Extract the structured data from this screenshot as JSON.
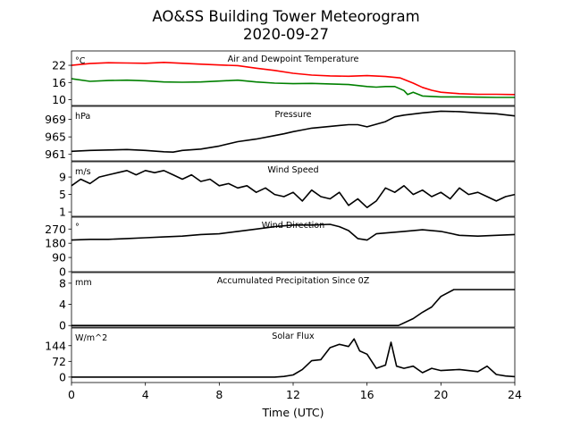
{
  "figure": {
    "title_line1": "AO&SS Building Tower Meteorogram",
    "title_line2": "2020-09-27",
    "xlabel": "Time (UTC)",
    "x_ticks": [
      "0",
      "4",
      "8",
      "12",
      "16",
      "20",
      "24"
    ]
  },
  "colors": {
    "temperature": "#ff0000",
    "dewpoint": "#008000",
    "line": "#000000"
  },
  "chart_data": [
    {
      "type": "line",
      "title": "Air and Dewpoint Temperature",
      "unit": "°C",
      "xlim": [
        0,
        24
      ],
      "ylim": [
        8,
        27
      ],
      "yticks": [
        10,
        16,
        22
      ],
      "grid": false,
      "series": [
        {
          "key": "temperature",
          "color": "#ff0000",
          "x": [
            0,
            1,
            2,
            3,
            4,
            5,
            6,
            7,
            8,
            9,
            10,
            11,
            12,
            13,
            14,
            15,
            16,
            17,
            17.8,
            18.5,
            19,
            19.5,
            20,
            21,
            22,
            23,
            24
          ],
          "values": [
            22,
            22.6,
            22.9,
            22.8,
            22.7,
            23,
            22.7,
            22.4,
            22.1,
            21.9,
            21,
            20.2,
            19.2,
            18.6,
            18.3,
            18.2,
            18.4,
            18.1,
            17.6,
            15.8,
            14.3,
            13.3,
            12.6,
            12.1,
            11.9,
            11.9,
            11.8
          ]
        },
        {
          "key": "dewpoint",
          "color": "#008000",
          "x": [
            0,
            1,
            2,
            3,
            4,
            5,
            6,
            7,
            8,
            9,
            10,
            11,
            12,
            13,
            14,
            15,
            16,
            16.5,
            17,
            17.5,
            18,
            18.2,
            18.5,
            19,
            20,
            21,
            22,
            23,
            24
          ],
          "values": [
            17.3,
            16.4,
            16.7,
            16.8,
            16.6,
            16.2,
            16.1,
            16.2,
            16.5,
            16.8,
            16.2,
            15.8,
            15.6,
            15.7,
            15.5,
            15.3,
            14.6,
            14.4,
            14.6,
            14.6,
            13.2,
            11.8,
            12.6,
            11.3,
            11,
            11,
            10.9,
            10.8,
            10.8
          ]
        }
      ]
    },
    {
      "type": "line",
      "title": "Pressure",
      "unit": "hPa",
      "xlim": [
        0,
        24
      ],
      "ylim": [
        959.5,
        972
      ],
      "yticks": [
        961,
        965,
        969
      ],
      "grid": false,
      "series": [
        {
          "key": "pressure",
          "color": "#000000",
          "x": [
            0,
            1,
            2,
            3,
            4,
            5,
            5.5,
            6,
            7,
            8,
            9,
            10,
            11,
            11.5,
            12,
            12.5,
            13,
            14,
            15,
            15.5,
            16,
            17,
            17.5,
            18,
            19,
            20,
            21,
            22,
            23,
            24
          ],
          "values": [
            961.7,
            961.9,
            962,
            962.1,
            961.9,
            961.6,
            961.5,
            961.9,
            962.2,
            962.9,
            963.9,
            964.5,
            965.3,
            965.7,
            966.2,
            966.6,
            967,
            967.4,
            967.8,
            967.8,
            967.3,
            968.5,
            969.6,
            970,
            970.5,
            970.9,
            970.8,
            970.5,
            970.3,
            969.8
          ]
        }
      ]
    },
    {
      "type": "line",
      "title": "Wind Speed",
      "unit": "m/s",
      "xlim": [
        0,
        24
      ],
      "ylim": [
        0,
        12.5
      ],
      "yticks": [
        1,
        5,
        9
      ],
      "grid": false,
      "series": [
        {
          "key": "wind_speed",
          "color": "#000000",
          "x": [
            0,
            0.5,
            1,
            1.5,
            2,
            2.5,
            3,
            3.5,
            4,
            4.5,
            5,
            5.5,
            6,
            6.5,
            7,
            7.5,
            8,
            8.5,
            9,
            9.5,
            10,
            10.5,
            11,
            11.5,
            12,
            12.5,
            13,
            13.5,
            14,
            14.5,
            15,
            15.5,
            16,
            16.5,
            17,
            17.5,
            18,
            18.5,
            19,
            19.5,
            20,
            20.5,
            21,
            21.5,
            22,
            22.5,
            23,
            23.5,
            24
          ],
          "values": [
            7,
            8.5,
            7.5,
            9,
            9.5,
            10,
            10.5,
            9.5,
            10.5,
            10,
            10.5,
            9.5,
            8.5,
            9.5,
            8,
            8.5,
            7,
            7.5,
            6.5,
            7,
            5.5,
            6.5,
            5,
            4.5,
            5.5,
            3.5,
            6,
            4.5,
            4,
            5.5,
            2.5,
            4,
            2,
            3.5,
            6.5,
            5.5,
            7,
            5,
            6,
            4.5,
            5.5,
            4,
            6.5,
            5,
            5.5,
            4.5,
            3.5,
            4.5,
            5
          ]
        }
      ]
    },
    {
      "type": "line",
      "title": "Wind Direction",
      "unit": "°",
      "xlim": [
        0,
        24
      ],
      "ylim": [
        0,
        345
      ],
      "yticks": [
        0,
        90,
        180,
        270
      ],
      "grid": false,
      "series": [
        {
          "key": "wind_direction",
          "color": "#000000",
          "x": [
            0,
            1,
            2,
            3,
            4,
            5,
            6,
            7,
            8,
            9,
            10,
            11,
            12,
            13,
            14,
            14.5,
            15,
            15.5,
            16,
            16.5,
            17,
            18,
            19,
            20,
            21,
            22,
            23,
            24
          ],
          "values": [
            200,
            205,
            205,
            210,
            215,
            220,
            225,
            235,
            240,
            255,
            270,
            285,
            295,
            295,
            300,
            285,
            260,
            210,
            200,
            240,
            245,
            255,
            265,
            255,
            230,
            225,
            230,
            235
          ]
        }
      ]
    },
    {
      "type": "line",
      "title": "Accumulated Precipitation Since 0Z",
      "unit": "mm",
      "xlim": [
        0,
        24
      ],
      "ylim": [
        -0.3,
        10
      ],
      "yticks": [
        0,
        4,
        8
      ],
      "grid": false,
      "series": [
        {
          "key": "precipitation",
          "color": "#000000",
          "x": [
            0,
            17.7,
            18.5,
            19,
            19.5,
            20,
            20.7,
            21,
            24
          ],
          "values": [
            0,
            0,
            1.3,
            2.5,
            3.5,
            5.5,
            6.8,
            6.8,
            6.8
          ]
        }
      ]
    },
    {
      "type": "line",
      "title": "Solar Flux",
      "unit": "W/m^2",
      "xlim": [
        0,
        24
      ],
      "ylim": [
        -25,
        225
      ],
      "yticks": [
        0,
        72,
        144
      ],
      "grid": false,
      "series": [
        {
          "key": "solar_flux",
          "color": "#000000",
          "x": [
            0,
            11,
            11.5,
            12,
            12.5,
            13,
            13.5,
            14,
            14.5,
            15,
            15.3,
            15.6,
            16,
            16.5,
            17,
            17.3,
            17.6,
            18,
            18.5,
            19,
            19.5,
            20,
            21,
            22,
            22.5,
            23,
            23.5,
            24
          ],
          "values": [
            0,
            0,
            3,
            10,
            35,
            75,
            80,
            135,
            150,
            140,
            175,
            120,
            105,
            40,
            55,
            160,
            50,
            40,
            50,
            20,
            40,
            30,
            35,
            25,
            50,
            12,
            5,
            2
          ]
        }
      ]
    }
  ]
}
